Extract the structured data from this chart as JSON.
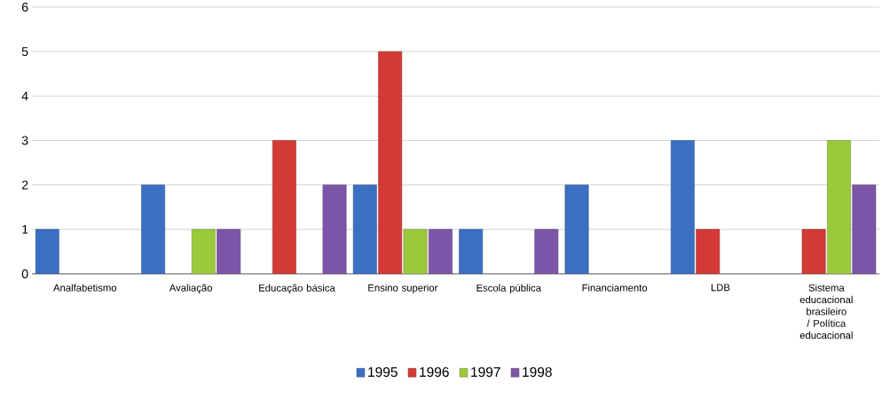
{
  "chart_data": {
    "type": "bar",
    "categories": [
      "Analfabetismo",
      "Avaliação",
      "Educação básica",
      "Ensino superior",
      "Escola pública",
      "Financiamento",
      "LDB",
      "Sistema educacional brasileiro / Política educacional"
    ],
    "series": [
      {
        "name": "1995",
        "color": "#3b6fc2",
        "values": [
          1,
          2,
          null,
          2,
          1,
          2,
          3,
          null
        ]
      },
      {
        "name": "1996",
        "color": "#d33a36",
        "values": [
          null,
          null,
          3,
          5,
          null,
          null,
          1,
          1
        ]
      },
      {
        "name": "1997",
        "color": "#9cc83c",
        "values": [
          null,
          1,
          null,
          1,
          null,
          null,
          null,
          3
        ]
      },
      {
        "name": "1998",
        "color": "#7d55a8",
        "values": [
          null,
          1,
          2,
          1,
          1,
          null,
          null,
          2
        ]
      }
    ],
    "ylim": [
      0,
      6
    ],
    "yticks": [
      0,
      1,
      2,
      3,
      4,
      5,
      6
    ],
    "grid": "y",
    "legend": "bottom"
  }
}
